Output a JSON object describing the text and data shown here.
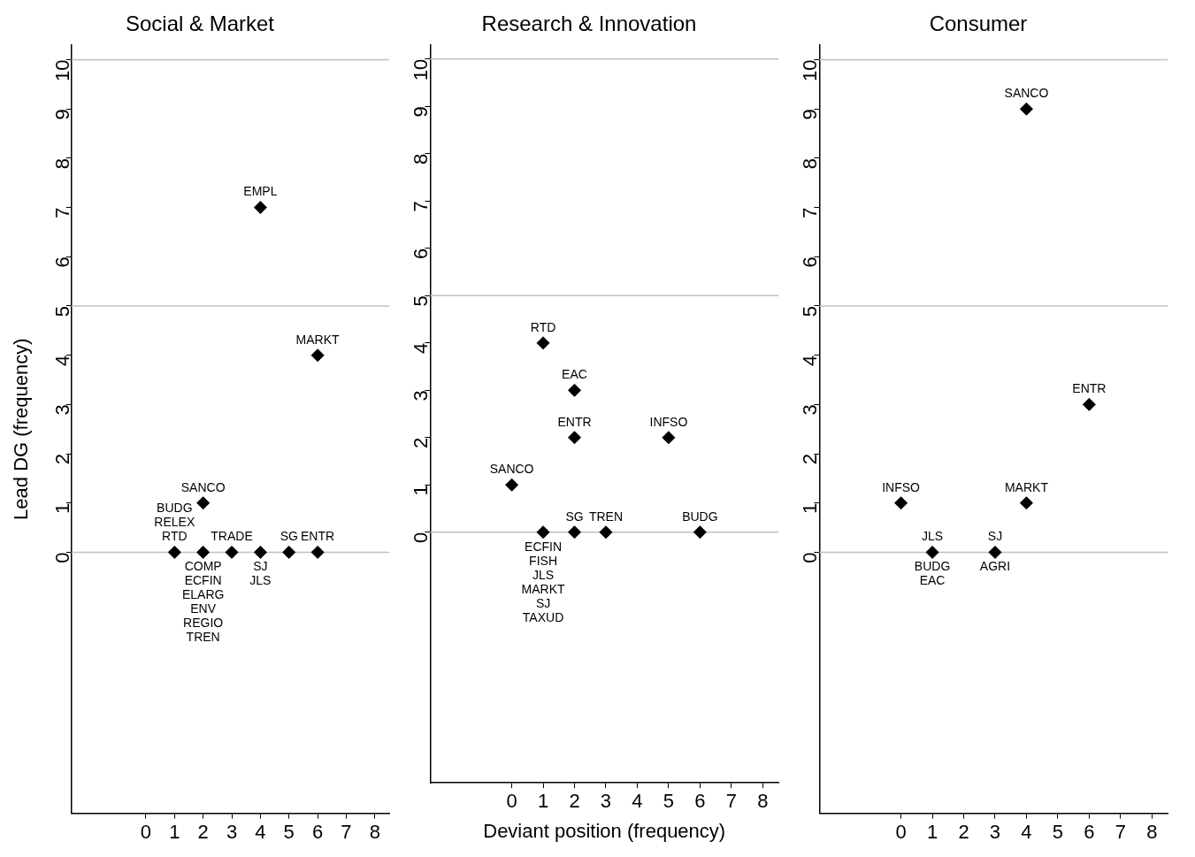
{
  "chart_data": [
    {
      "type": "scatter",
      "title": "Social & Market",
      "ylabel": "Lead DG (frequency)",
      "xlim": [
        -2.6,
        8.5
      ],
      "ylim": [
        -5.3,
        10.3
      ],
      "xticks": [
        0,
        1,
        2,
        3,
        4,
        5,
        6,
        7,
        8
      ],
      "yticks": [
        0,
        1,
        2,
        3,
        4,
        5,
        6,
        7,
        8,
        9,
        10
      ],
      "marker": "diamond",
      "series": [
        {
          "color": "#000000",
          "x": [
            4,
            6,
            2,
            1,
            2,
            3,
            4,
            5,
            6
          ],
          "values": [
            7,
            4,
            1,
            0,
            0,
            0,
            0,
            0,
            0
          ]
        }
      ],
      "ref_lines": [
        {
          "axis": "y",
          "value": 0,
          "color": "#c0c0c0"
        },
        {
          "axis": "y",
          "value": 5,
          "color": "#c0c0c0"
        },
        {
          "axis": "y",
          "value": 10,
          "color": "#c0c0c0"
        }
      ],
      "annotations": [
        {
          "text": "EMPL",
          "x": 4,
          "y": 7
        },
        {
          "text": "MARKT",
          "x": 6,
          "y": 4
        },
        {
          "text": "SANCO",
          "x": 2,
          "y": 1
        },
        {
          "text": "COMP\nECFIN\nELARG\nENV\nREGIO\nTREN",
          "x": 2,
          "y": 0
        },
        {
          "text": "BUDG\nRELEX\nRTD",
          "x": 1,
          "y": 0
        },
        {
          "text": "TRADE",
          "x": 3,
          "y": 0
        },
        {
          "text": "SJ\nJLS",
          "x": 4,
          "y": 0
        },
        {
          "text": "SG",
          "x": 5,
          "y": 0
        },
        {
          "text": "ENTR",
          "x": 6,
          "y": 0
        }
      ]
    },
    {
      "type": "scatter",
      "title": "Research & Innovation",
      "xlabel": "Deviant position (frequency)",
      "xlim": [
        -2.6,
        8.5
      ],
      "ylim": [
        -5.3,
        10.3
      ],
      "xticks": [
        0,
        1,
        2,
        3,
        4,
        5,
        6,
        7,
        8
      ],
      "yticks": [
        0,
        1,
        2,
        3,
        4,
        5,
        6,
        7,
        8,
        9,
        10
      ],
      "marker": "diamond",
      "series": [
        {
          "color": "#000000",
          "x": [
            1,
            2,
            2,
            5,
            0,
            1,
            2,
            3,
            6
          ],
          "values": [
            4,
            3,
            2,
            2,
            1,
            0,
            0,
            0,
            0
          ]
        }
      ],
      "ref_lines": [
        {
          "axis": "y",
          "value": 0,
          "color": "#c0c0c0"
        },
        {
          "axis": "y",
          "value": 5,
          "color": "#c0c0c0"
        },
        {
          "axis": "y",
          "value": 10,
          "color": "#c0c0c0"
        }
      ],
      "annotations": [
        {
          "text": "RTD",
          "x": 1,
          "y": 4
        },
        {
          "text": "EAC",
          "x": 2,
          "y": 3
        },
        {
          "text": "ENTR",
          "x": 2,
          "y": 2
        },
        {
          "text": "INFSO",
          "x": 5,
          "y": 2
        },
        {
          "text": "SANCO",
          "x": 0,
          "y": 1
        },
        {
          "text": "ECFIN\nFISH\nJLS\nMARKT\nSJ\nTAXUD",
          "x": 1,
          "y": 0
        },
        {
          "text": "SG",
          "x": 2,
          "y": 0
        },
        {
          "text": "TREN",
          "x": 3,
          "y": 0
        },
        {
          "text": "BUDG",
          "x": 6,
          "y": 0
        }
      ]
    },
    {
      "type": "scatter",
      "title": "Consumer",
      "xlim": [
        -2.6,
        8.5
      ],
      "ylim": [
        -5.3,
        10.3
      ],
      "xticks": [
        0,
        1,
        2,
        3,
        4,
        5,
        6,
        7,
        8
      ],
      "yticks": [
        0,
        1,
        2,
        3,
        4,
        5,
        6,
        7,
        8,
        9,
        10
      ],
      "marker": "diamond",
      "series": [
        {
          "color": "#000000",
          "x": [
            4,
            6,
            0,
            4,
            1,
            3
          ],
          "values": [
            9,
            3,
            1,
            1,
            0,
            0
          ]
        }
      ],
      "ref_lines": [
        {
          "axis": "y",
          "value": 0,
          "color": "#c0c0c0"
        },
        {
          "axis": "y",
          "value": 5,
          "color": "#c0c0c0"
        },
        {
          "axis": "y",
          "value": 10,
          "color": "#c0c0c0"
        }
      ],
      "annotations": [
        {
          "text": "SANCO",
          "x": 4,
          "y": 9
        },
        {
          "text": "ENTR",
          "x": 6,
          "y": 3
        },
        {
          "text": "INFSO",
          "x": 0,
          "y": 1
        },
        {
          "text": "MARKT",
          "x": 4,
          "y": 1
        },
        {
          "text": "JLS",
          "x": 1,
          "y": 0
        },
        {
          "text": "BUDG\nEAC",
          "x": 1,
          "y": 0
        },
        {
          "text": "SJ",
          "x": 3,
          "y": 0
        },
        {
          "text": "AGRI",
          "x": 3,
          "y": 0
        }
      ]
    }
  ]
}
